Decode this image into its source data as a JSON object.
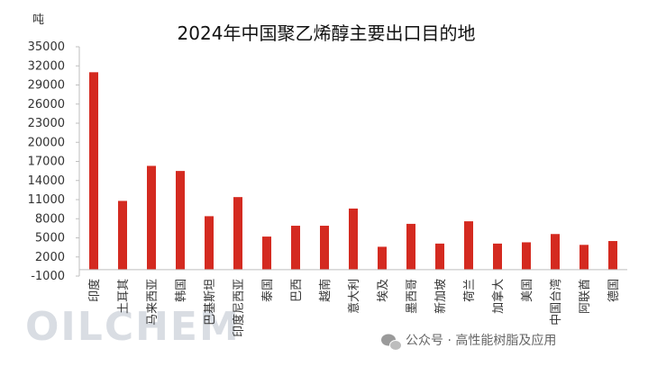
{
  "chart_data": {
    "type": "bar",
    "title": "2024年中国聚乙烯醇主要出口目的地",
    "unit": "吨",
    "yticks": [
      -1000,
      2000,
      5000,
      8000,
      11000,
      14000,
      17000,
      20000,
      23000,
      26000,
      29000,
      32000,
      35000
    ],
    "ylim": [
      -1000,
      35000
    ],
    "categories": [
      "印度",
      "土耳其",
      "马来西亚",
      "韩国",
      "巴基斯坦",
      "印度尼西亚",
      "泰国",
      "巴西",
      "越南",
      "意大利",
      "埃及",
      "墨西哥",
      "新加坡",
      "荷兰",
      "加拿大",
      "美国",
      "中国台湾",
      "阿联酋",
      "德国"
    ],
    "values": [
      31000,
      10800,
      16300,
      15500,
      8400,
      11400,
      5200,
      6900,
      6900,
      9600,
      3600,
      7200,
      4100,
      7600,
      4100,
      4300,
      5600,
      3900,
      4500
    ],
    "color": "#d42a20",
    "grid": false,
    "legend": "none"
  },
  "watermark": {
    "text": "OILCHEM"
  },
  "footer": {
    "text": "公众号 · 高性能树脂及应用"
  }
}
